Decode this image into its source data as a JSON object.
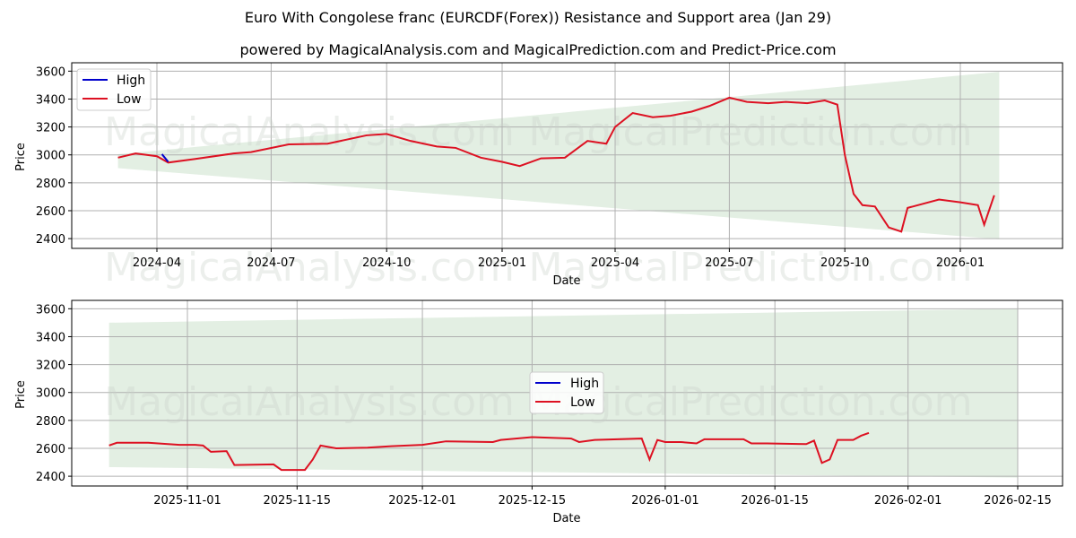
{
  "header": {
    "title": "Euro With Congolese franc (EURCDF(Forex)) Resistance and Support area (Jan 29)",
    "subtitle": "powered by MagicalAnalysis.com and MagicalPrediction.com and Predict-Price.com"
  },
  "watermarks": {
    "left": "MagicalAnalysis.com",
    "right": "MagicalPrediction.com"
  },
  "colors": {
    "high": "#0000cc",
    "low": "#dd1122",
    "band": "#e3efe3",
    "grid": "#b0b0b0"
  },
  "chart_data": [
    {
      "type": "line",
      "title": "Long-range view",
      "xlabel": "Date",
      "ylabel": "Price",
      "ylim": [
        2330,
        3660
      ],
      "yticks": [
        2400,
        2600,
        2800,
        3000,
        3200,
        3400,
        3600
      ],
      "xticks": [
        "2024-04",
        "2024-07",
        "2024-10",
        "2025-01",
        "2025-04",
        "2025-07",
        "2025-10",
        "2026-01"
      ],
      "grid": true,
      "legend": {
        "position": "upper left",
        "entries": [
          "High",
          "Low"
        ]
      },
      "band": {
        "label": "Resistance and Support area",
        "start": {
          "date": "2024-03",
          "upper": 3005,
          "lower": 2905
        },
        "end": {
          "date": "2026-02",
          "upper": 3595,
          "lower": 2395
        }
      },
      "series": [
        {
          "name": "Low",
          "x": [
            "2024-03-01",
            "2024-03-15",
            "2024-04-01",
            "2024-04-10",
            "2024-05-01",
            "2024-06-01",
            "2024-06-15",
            "2024-07-15",
            "2024-08-15",
            "2024-09-15",
            "2024-10-01",
            "2024-10-20",
            "2024-11-10",
            "2024-11-25",
            "2024-12-15",
            "2025-01-01",
            "2025-01-15",
            "2025-02-01",
            "2025-02-20",
            "2025-03-10",
            "2025-03-25",
            "2025-04-01",
            "2025-04-15",
            "2025-05-01",
            "2025-05-15",
            "2025-06-01",
            "2025-06-15",
            "2025-07-01",
            "2025-07-15",
            "2025-08-01",
            "2025-08-15",
            "2025-09-01",
            "2025-09-15",
            "2025-09-25",
            "2025-10-01",
            "2025-10-08",
            "2025-10-15",
            "2025-10-25",
            "2025-11-05",
            "2025-11-15",
            "2025-11-20",
            "2025-12-15",
            "2026-01-01",
            "2026-01-15",
            "2026-01-20",
            "2026-01-28"
          ],
          "values": [
            2980,
            3010,
            2990,
            2945,
            2970,
            3010,
            3020,
            3075,
            3080,
            3140,
            3150,
            3100,
            3060,
            3050,
            2980,
            2950,
            2920,
            2975,
            2980,
            3100,
            3080,
            3200,
            3300,
            3270,
            3280,
            3310,
            3350,
            3410,
            3380,
            3370,
            3380,
            3370,
            3390,
            3360,
            3000,
            2720,
            2640,
            2630,
            2480,
            2450,
            2620,
            2680,
            2660,
            2640,
            2500,
            2710
          ]
        },
        {
          "name": "High",
          "note": "overlaps Low almost everywhere; visible blue segment near 2024-04",
          "x": [
            "2024-04-05",
            "2024-04-10"
          ],
          "values": [
            3005,
            2950
          ]
        }
      ]
    },
    {
      "type": "line",
      "title": "Recent view (zoomed)",
      "xlabel": "Date",
      "ylabel": "Price",
      "ylim": [
        2330,
        3660
      ],
      "yticks": [
        2400,
        2600,
        2800,
        3000,
        3200,
        3400,
        3600
      ],
      "xticks": [
        "2025-11-01",
        "2025-11-15",
        "2025-12-01",
        "2025-12-15",
        "2026-01-01",
        "2026-01-15",
        "2026-02-01",
        "2026-02-15"
      ],
      "grid": true,
      "legend": {
        "position": "center",
        "entries": [
          "High",
          "Low"
        ]
      },
      "band": {
        "label": "Resistance and Support area",
        "start": {
          "date": "2025-10-22",
          "upper": 3500,
          "lower": 2465
        },
        "end": {
          "date": "2026-02-15",
          "upper": 3600,
          "lower": 2390
        }
      },
      "series": [
        {
          "name": "Low",
          "x": [
            "2025-10-22",
            "2025-10-23",
            "2025-10-27",
            "2025-10-31",
            "2025-11-02",
            "2025-11-03",
            "2025-11-04",
            "2025-11-06",
            "2025-11-07",
            "2025-11-12",
            "2025-11-13",
            "2025-11-14",
            "2025-11-16",
            "2025-11-17",
            "2025-11-18",
            "2025-11-20",
            "2025-11-24",
            "2025-11-27",
            "2025-12-01",
            "2025-12-04",
            "2025-12-10",
            "2025-12-11",
            "2025-12-15",
            "2025-12-20",
            "2025-12-21",
            "2025-12-23",
            "2025-12-29",
            "2025-12-30",
            "2025-12-31",
            "2026-01-01",
            "2026-01-03",
            "2026-01-05",
            "2026-01-06",
            "2026-01-08",
            "2026-01-11",
            "2026-01-12",
            "2026-01-14",
            "2026-01-19",
            "2026-01-20",
            "2026-01-21",
            "2026-01-22",
            "2026-01-23",
            "2026-01-25",
            "2026-01-26",
            "2026-01-27"
          ],
          "values": [
            2620,
            2640,
            2640,
            2625,
            2625,
            2620,
            2575,
            2580,
            2480,
            2485,
            2445,
            2445,
            2445,
            2520,
            2620,
            2600,
            2605,
            2615,
            2625,
            2650,
            2645,
            2660,
            2680,
            2670,
            2645,
            2660,
            2670,
            2520,
            2660,
            2645,
            2645,
            2635,
            2665,
            2665,
            2665,
            2635,
            2635,
            2630,
            2655,
            2495,
            2520,
            2660,
            2660,
            2690,
            2710
          ]
        },
        {
          "name": "High",
          "x": [],
          "values": []
        }
      ]
    }
  ]
}
